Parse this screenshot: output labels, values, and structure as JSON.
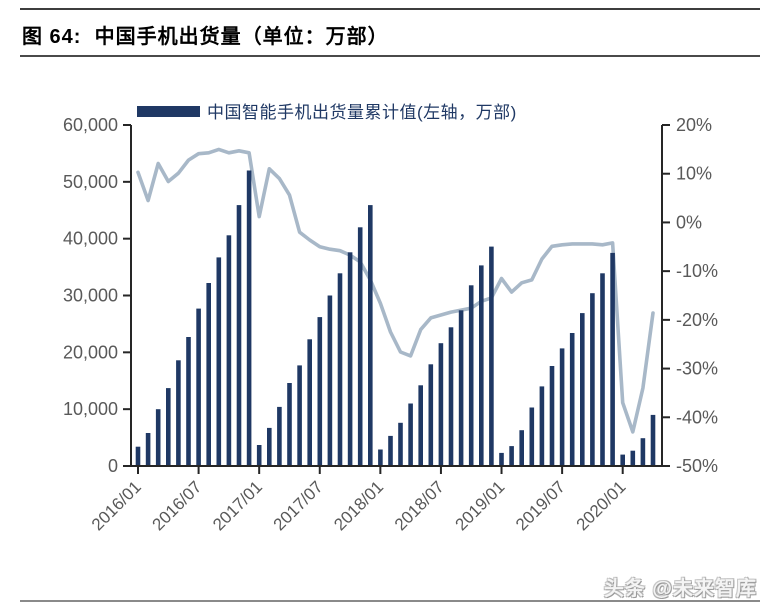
{
  "figure": {
    "title": "图 64:  中国手机出货量（单位：万部）",
    "watermark": "头条 @未来智库"
  },
  "colors": {
    "bar": "#1f3864",
    "line": "#a8b8c8",
    "axis": "#262626",
    "tick_label": "#595959"
  },
  "chart_data": {
    "type": "bar",
    "title": "中国手机出货量（单位：万部）",
    "legend": [
      {
        "label": "中国智能手机出货量累计值(左轴，万部)",
        "color": "#1f3864",
        "axis": "left"
      }
    ],
    "left_axis": {
      "min": 0,
      "max": 60000,
      "step": 10000,
      "tick_labels": [
        "0",
        "10,000",
        "20,000",
        "30,000",
        "40,000",
        "50,000",
        "60,000"
      ]
    },
    "right_axis": {
      "min": -50,
      "max": 20,
      "step": 10,
      "tick_labels": [
        "20%",
        "10%",
        "0%",
        "-10%",
        "-20%",
        "-30%",
        "-40%",
        "-50%"
      ]
    },
    "x_tick_labels": [
      "2016/01",
      "2016/07",
      "2017/01",
      "2017/07",
      "2018/01",
      "2018/07",
      "2019/01",
      "2019/07",
      "2020/01"
    ],
    "months": [
      "2016/01",
      "2016/02",
      "2016/03",
      "2016/04",
      "2016/05",
      "2016/06",
      "2016/07",
      "2016/08",
      "2016/09",
      "2016/10",
      "2016/11",
      "2016/12",
      "2017/01",
      "2017/02",
      "2017/03",
      "2017/04",
      "2017/05",
      "2017/06",
      "2017/07",
      "2017/08",
      "2017/09",
      "2017/10",
      "2017/11",
      "2017/12",
      "2018/01",
      "2018/02",
      "2018/03",
      "2018/04",
      "2018/05",
      "2018/06",
      "2018/07",
      "2018/08",
      "2018/09",
      "2018/10",
      "2018/11",
      "2018/12",
      "2019/01",
      "2019/02",
      "2019/03",
      "2019/04",
      "2019/05",
      "2019/06",
      "2019/07",
      "2019/08",
      "2019/09",
      "2019/10",
      "2019/11",
      "2019/12",
      "2020/01",
      "2020/02",
      "2020/03",
      "2020/04"
    ],
    "bars": {
      "label": "中国智能手机出货量累计值(左轴，万部)",
      "axis": "left",
      "color": "#1f3864",
      "values": [
        3400,
        5800,
        10000,
        13700,
        18600,
        22700,
        27700,
        32200,
        36700,
        40600,
        45900,
        52000,
        3700,
        6700,
        10400,
        14600,
        17700,
        22300,
        26200,
        30000,
        33900,
        37600,
        42000,
        45900,
        2900,
        5300,
        7600,
        11000,
        14200,
        17900,
        21600,
        24400,
        27400,
        31800,
        35300,
        38600,
        2300,
        3500,
        6300,
        10300,
        14000,
        17600,
        20700,
        23400,
        26900,
        30400,
        33900,
        37500,
        2000,
        2700,
        4900,
        9000
      ]
    },
    "line": {
      "axis": "right",
      "color": "#a8b8c8",
      "unit": "%",
      "values": [
        10.3,
        4.5,
        12.1,
        8.4,
        10.1,
        12.8,
        14.1,
        14.3,
        15.0,
        14.3,
        14.7,
        14.3,
        1.2,
        11.0,
        9.0,
        5.6,
        -2.0,
        -3.6,
        -5.0,
        -5.5,
        -5.8,
        -6.7,
        -8.1,
        -11.8,
        -16.6,
        -22.5,
        -26.6,
        -27.4,
        -22.0,
        -19.6,
        -19.0,
        -18.4,
        -18.0,
        -17.6,
        -16.2,
        -15.5,
        -11.5,
        -14.3,
        -12.4,
        -11.8,
        -7.5,
        -4.9,
        -4.6,
        -4.4,
        -4.4,
        -4.4,
        -4.6,
        -4.2,
        -37.0,
        -43.0,
        -34.0,
        -18.6
      ]
    }
  }
}
